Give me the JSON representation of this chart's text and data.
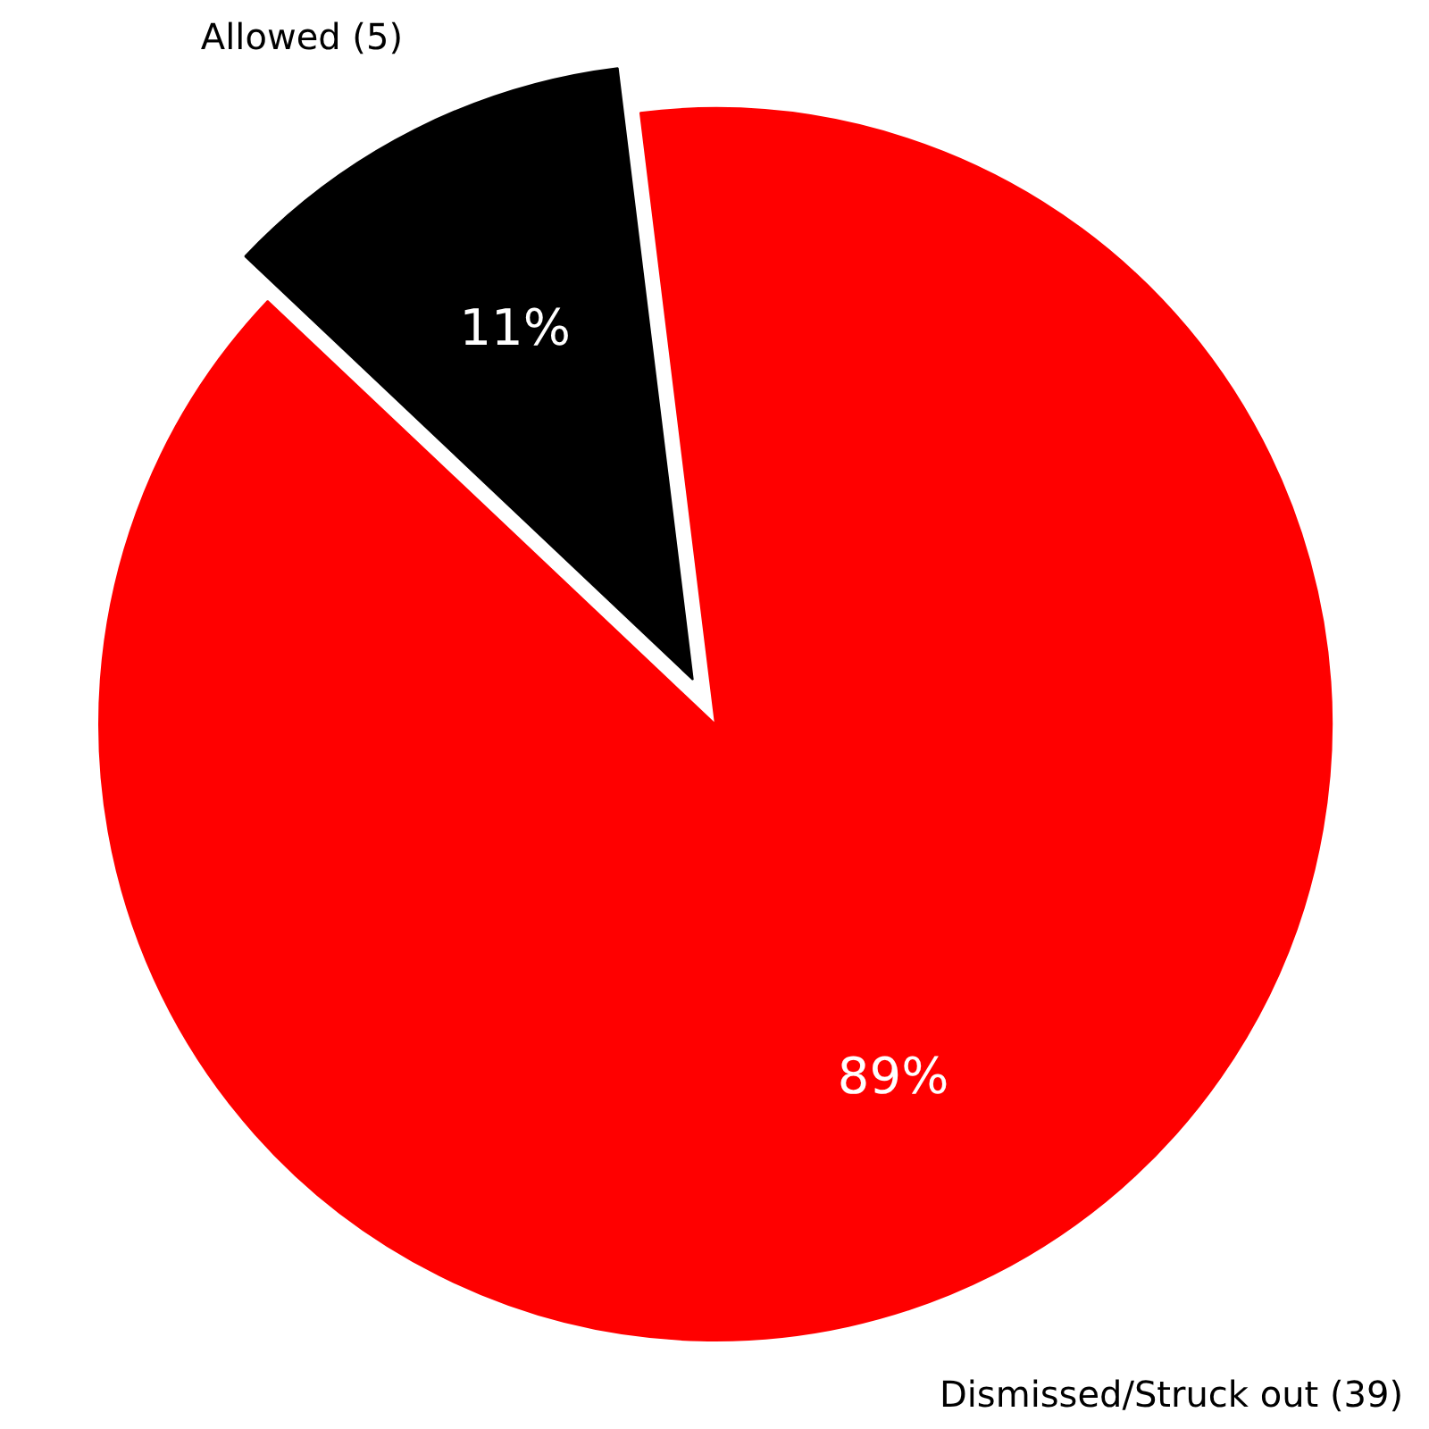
{
  "chart_data": {
    "type": "pie",
    "categories": [
      "Allowed (5)",
      "Dismissed/Struck out (39)"
    ],
    "values": [
      11,
      89
    ],
    "colors": [
      "#000000",
      "#ff0000"
    ],
    "value_labels": [
      "11%",
      "89%"
    ]
  }
}
